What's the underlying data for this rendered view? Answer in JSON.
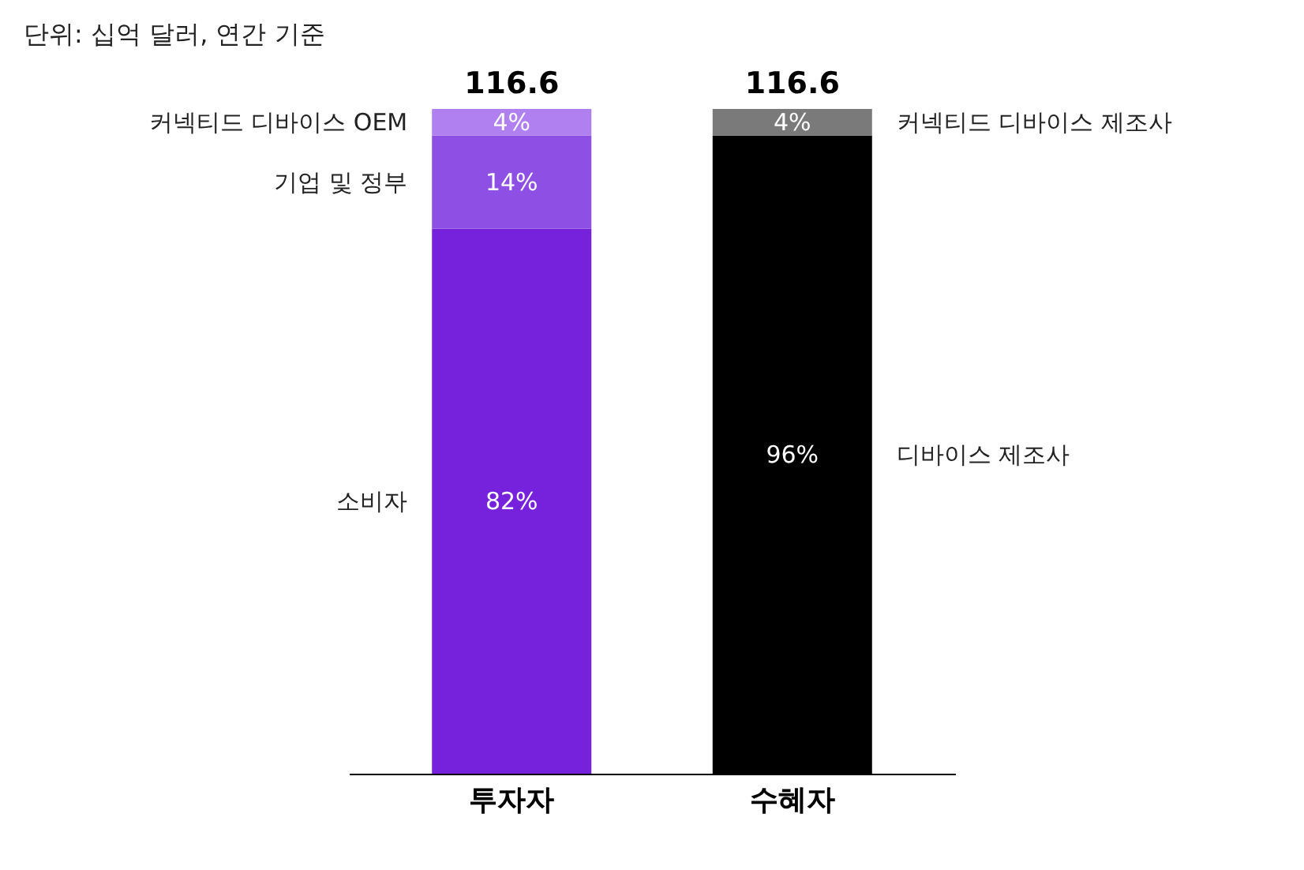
{
  "chart_data": {
    "type": "bar",
    "title": "단위: 십억 달러, 연간 기준",
    "categories": [
      "투자자",
      "수혜자"
    ],
    "stacked": true,
    "series": [
      {
        "name": "소비자",
        "color": "#7622dc",
        "values": [
          82,
          null
        ],
        "value_labels": [
          "82%",
          null
        ]
      },
      {
        "name": "기업 및 정부",
        "color": "#8e50e4",
        "values": [
          14,
          null
        ],
        "value_labels": [
          "14%",
          null
        ]
      },
      {
        "name": "커넥티드 디바이스 OEM",
        "color": "#b07ff0",
        "values": [
          4,
          null
        ],
        "value_labels": [
          "4%",
          null
        ]
      },
      {
        "name": "디바이스 제조사",
        "color": "#000000",
        "values": [
          null,
          96
        ],
        "value_labels": [
          null,
          "96%"
        ]
      },
      {
        "name": "커넥티드 디바이스 제조사",
        "color": "#7a7a7a",
        "values": [
          null,
          4
        ],
        "value_labels": [
          null,
          "4%"
        ]
      }
    ],
    "annotations": [
      {
        "text": "116.6",
        "x": "투자자",
        "y": 100
      },
      {
        "text": "116.6",
        "x": "수혜자",
        "y": 100
      }
    ]
  }
}
